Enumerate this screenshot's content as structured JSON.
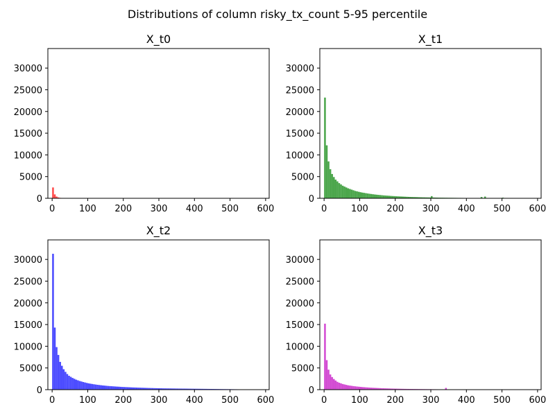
{
  "figure_title": "Distributions of column risky_tx_count 5-95 percentile",
  "chart_data": [
    {
      "type": "bar",
      "title": "X_t0",
      "color": "#ff0000",
      "xlim": [
        -12,
        610
      ],
      "ylim": [
        0,
        34500
      ],
      "xticks": [
        0,
        100,
        200,
        300,
        400,
        500,
        600
      ],
      "yticks": [
        0,
        5000,
        10000,
        15000,
        20000,
        25000,
        30000
      ],
      "bin_width": 5,
      "bin_starts": [
        0,
        5,
        10,
        15,
        20,
        25
      ],
      "values": [
        2500,
        900,
        400,
        200,
        100,
        50
      ]
    },
    {
      "type": "bar",
      "title": "X_t1",
      "color": "#008000",
      "xlim": [
        -12,
        610
      ],
      "ylim": [
        0,
        34500
      ],
      "xticks": [
        0,
        100,
        200,
        300,
        400,
        500,
        600
      ],
      "yticks": [
        0,
        5000,
        10000,
        15000,
        20000,
        25000,
        30000
      ],
      "bin_width": 5,
      "bin_starts": [
        0,
        5,
        10,
        15,
        20,
        25,
        30,
        35,
        40,
        45,
        50,
        55,
        60,
        65,
        70,
        75,
        80,
        85,
        90,
        95,
        100,
        105,
        110,
        115,
        120,
        125,
        130,
        135,
        140,
        145,
        150,
        155,
        160,
        165,
        170,
        175,
        180,
        185,
        190,
        195,
        200,
        205,
        210,
        215,
        220,
        225,
        230,
        235,
        240,
        245,
        250,
        255,
        260,
        265,
        270,
        275,
        280,
        285,
        290,
        295,
        300,
        305,
        310,
        315,
        320,
        325,
        330,
        335,
        340,
        345,
        350,
        355,
        360,
        365,
        370,
        375,
        380,
        385,
        390,
        395,
        400,
        405,
        410,
        415,
        420,
        425,
        430,
        435,
        440,
        445,
        450,
        455,
        460,
        465,
        470,
        475,
        480,
        485,
        490,
        495,
        500,
        505,
        510,
        515,
        520,
        525,
        530,
        535,
        540,
        545,
        550,
        555,
        560,
        565,
        570,
        575,
        580,
        585
      ],
      "values": [
        23200,
        12200,
        8500,
        6700,
        5600,
        4900,
        4300,
        3900,
        3500,
        3200,
        2900,
        2700,
        2500,
        2300,
        2150,
        2000,
        1850,
        1700,
        1600,
        1500,
        1400,
        1320,
        1250,
        1180,
        1110,
        1050,
        990,
        930,
        880,
        830,
        790,
        750,
        710,
        670,
        640,
        610,
        580,
        550,
        520,
        500,
        470,
        450,
        430,
        410,
        390,
        370,
        350,
        330,
        320,
        300,
        290,
        280,
        265,
        250,
        240,
        230,
        220,
        210,
        200,
        195,
        500,
        180,
        170,
        160,
        150,
        145,
        140,
        135,
        130,
        125,
        120,
        115,
        110,
        105,
        100,
        95,
        92,
        88,
        85,
        80,
        78,
        75,
        72,
        70,
        68,
        65,
        62,
        60,
        300,
        55,
        400,
        50,
        48,
        45,
        42,
        40,
        38,
        35,
        33,
        30,
        150,
        28,
        26,
        24,
        22,
        20,
        18,
        16,
        14,
        12,
        10,
        9,
        8,
        7,
        6,
        5,
        4,
        3
      ]
    },
    {
      "type": "bar",
      "title": "X_t2",
      "color": "#0000ff",
      "xlim": [
        -12,
        610
      ],
      "ylim": [
        0,
        34500
      ],
      "xticks": [
        0,
        100,
        200,
        300,
        400,
        500,
        600
      ],
      "yticks": [
        0,
        5000,
        10000,
        15000,
        20000,
        25000,
        30000
      ],
      "bin_width": 5,
      "bin_starts": [
        0,
        5,
        10,
        15,
        20,
        25,
        30,
        35,
        40,
        45,
        50,
        55,
        60,
        65,
        70,
        75,
        80,
        85,
        90,
        95,
        100,
        105,
        110,
        115,
        120,
        125,
        130,
        135,
        140,
        145,
        150,
        155,
        160,
        165,
        170,
        175,
        180,
        185,
        190,
        195,
        200,
        205,
        210,
        215,
        220,
        225,
        230,
        235,
        240,
        245,
        250,
        255,
        260,
        265,
        270,
        275,
        280,
        285,
        290,
        295,
        300,
        305,
        310,
        315,
        320,
        325,
        330,
        335,
        340,
        345,
        350,
        355,
        360,
        365,
        370,
        375,
        380,
        385,
        390,
        395,
        400,
        405,
        410,
        415,
        420,
        425,
        430,
        435,
        440,
        445,
        450,
        455,
        460,
        465,
        470,
        475,
        480,
        485,
        490,
        495,
        500,
        505,
        510,
        515,
        520,
        525,
        530,
        535,
        540,
        545,
        550,
        555,
        560,
        565,
        570,
        575,
        580,
        585
      ],
      "values": [
        31300,
        14300,
        9800,
        8000,
        6400,
        5500,
        4700,
        4100,
        3600,
        3200,
        2950,
        2700,
        2500,
        2300,
        2150,
        2000,
        1880,
        1760,
        1650,
        1550,
        1450,
        1380,
        1310,
        1240,
        1180,
        1120,
        1070,
        1020,
        970,
        930,
        890,
        850,
        820,
        790,
        760,
        730,
        700,
        680,
        650,
        630,
        610,
        590,
        570,
        550,
        530,
        510,
        500,
        485,
        470,
        455,
        440,
        425,
        410,
        400,
        385,
        375,
        365,
        350,
        340,
        330,
        320,
        310,
        300,
        295,
        290,
        285,
        280,
        270,
        265,
        260,
        255,
        250,
        245,
        240,
        235,
        230,
        225,
        220,
        215,
        210,
        205,
        200,
        195,
        190,
        185,
        180,
        175,
        170,
        165,
        160,
        155,
        150,
        145,
        140,
        135,
        130,
        125,
        120,
        115,
        110,
        105,
        100,
        95,
        90,
        85,
        80,
        75,
        70,
        65,
        60,
        55,
        50,
        45,
        40,
        35,
        30,
        25,
        20
      ]
    },
    {
      "type": "bar",
      "title": "X_t3",
      "color": "#c000c0",
      "xlim": [
        -12,
        610
      ],
      "ylim": [
        0,
        34500
      ],
      "xticks": [
        0,
        100,
        200,
        300,
        400,
        500,
        600
      ],
      "yticks": [
        0,
        5000,
        10000,
        15000,
        20000,
        25000,
        30000
      ],
      "bin_width": 5,
      "bin_starts": [
        0,
        5,
        10,
        15,
        20,
        25,
        30,
        35,
        40,
        45,
        50,
        55,
        60,
        65,
        70,
        75,
        80,
        85,
        90,
        95,
        100,
        105,
        110,
        115,
        120,
        125,
        130,
        135,
        140,
        145,
        150,
        155,
        160,
        165,
        170,
        175,
        180,
        185,
        190,
        195,
        200,
        205,
        210,
        215,
        220,
        225,
        230,
        235,
        240,
        245,
        250,
        255,
        260,
        265,
        270,
        275,
        280,
        285,
        290,
        295,
        300,
        305,
        310,
        315,
        320,
        325,
        330,
        335,
        340
      ],
      "values": [
        15200,
        6800,
        4600,
        3500,
        2900,
        2450,
        2100,
        1800,
        1600,
        1450,
        1300,
        1200,
        1100,
        1000,
        940,
        880,
        820,
        770,
        720,
        680,
        640,
        600,
        570,
        540,
        510,
        480,
        455,
        430,
        410,
        390,
        370,
        350,
        330,
        315,
        300,
        285,
        270,
        255,
        245,
        235,
        225,
        215,
        205,
        195,
        185,
        175,
        170,
        165,
        160,
        155,
        150,
        145,
        140,
        135,
        130,
        125,
        120,
        115,
        110,
        105,
        100,
        95,
        90,
        85,
        80,
        75,
        70,
        65,
        400
      ]
    }
  ]
}
